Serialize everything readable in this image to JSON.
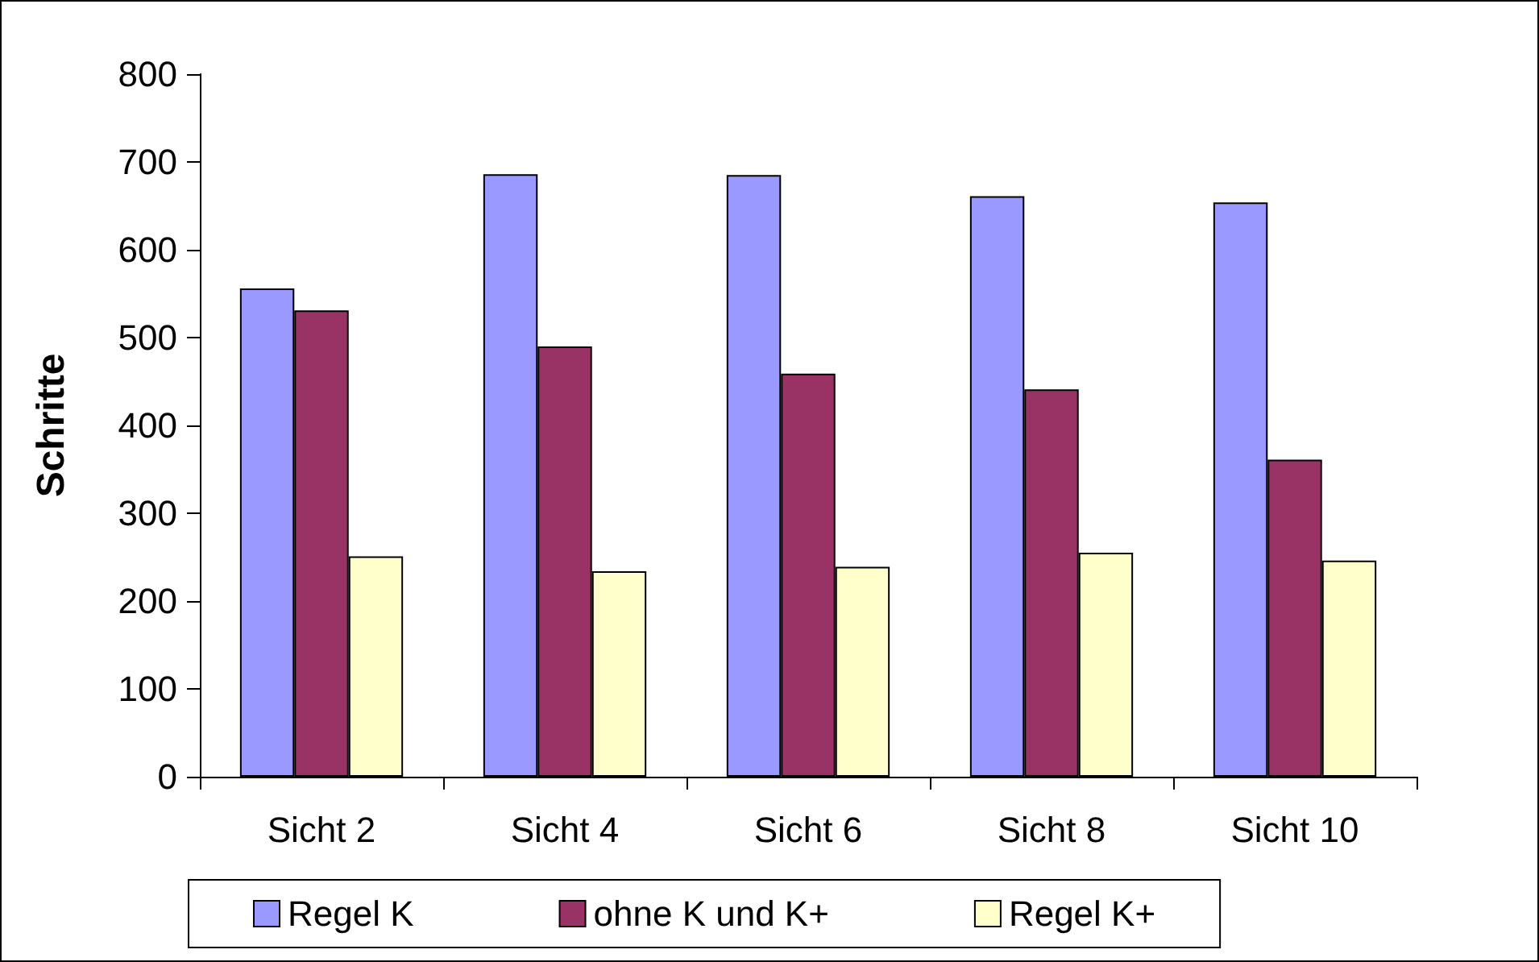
{
  "chart_data": {
    "type": "bar",
    "ylabel": "Schritte",
    "categories": [
      "Sicht 2",
      "Sicht 4",
      "Sicht 6",
      "Sicht 8",
      "Sicht 10"
    ],
    "series": [
      {
        "name": "Regel K",
        "color": "#9999ff",
        "values": [
          556,
          686,
          685,
          661,
          654
        ]
      },
      {
        "name": "ohne K und K+",
        "color": "#993366",
        "values": [
          531,
          490,
          459,
          441,
          361
        ]
      },
      {
        "name": "Regel K+",
        "color": "#ffffcc",
        "values": [
          251,
          234,
          239,
          255,
          246
        ]
      }
    ],
    "ylim": [
      0,
      800
    ],
    "yticks": [
      0,
      100,
      200,
      300,
      400,
      500,
      600,
      700,
      800
    ],
    "grid": false,
    "legend": "bottom"
  }
}
